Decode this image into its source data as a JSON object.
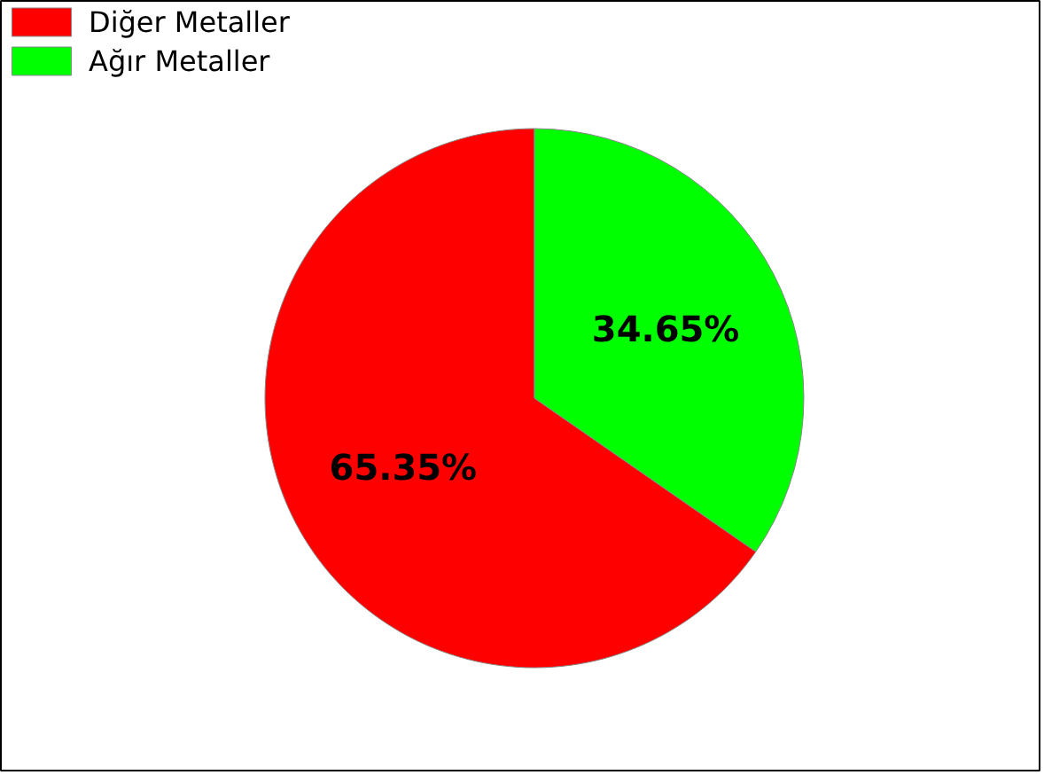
{
  "chart_data": {
    "type": "pie",
    "categories": [
      "Diğer Metaller",
      "Ağır Metaller"
    ],
    "values": [
      65.35,
      34.65
    ],
    "colors": [
      "#ff0000",
      "#00ff00"
    ],
    "value_labels": [
      "65.35%",
      "34.65%"
    ],
    "legend": "top left"
  }
}
